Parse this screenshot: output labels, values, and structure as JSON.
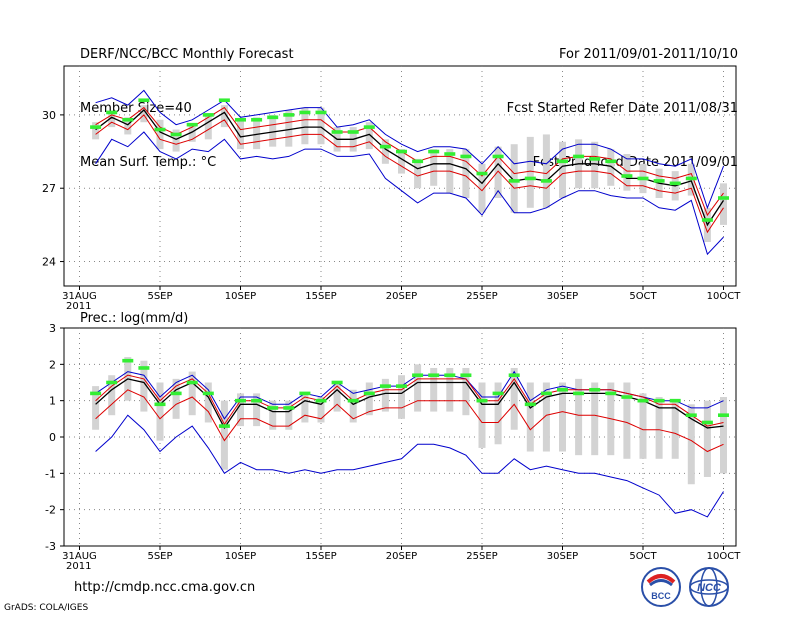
{
  "header": {
    "left": [
      "DERF/NCC/BCC Monthly Forecast",
      "Member Size=40",
      "Mean Surf. Temp.: °C"
    ],
    "right": [
      "For 2011/09/01-2011/10/10",
      "Fcst Started Refer Date 2011/08/31",
      "Fcst Produced Date 2011/09/01"
    ]
  },
  "footer": {
    "url": "http://cmdp.ncc.cma.gov.cn",
    "credit": "GrADS: COLA/IGES",
    "logo1_text": "BCC",
    "logo2_text": "NCC"
  },
  "colors": {
    "mean": "#000000",
    "member_bar": "#d3d3d3",
    "obs": "#33ee33",
    "spread": "#dd0000",
    "envelope": "#0000cc"
  },
  "chart_data": [
    {
      "type": "line",
      "title": "Mean Surf. Temp.: °C",
      "x_tick_labels": [
        "31AUG",
        "5SEP",
        "10SEP",
        "15SEP",
        "20SEP",
        "25SEP",
        "30SEP",
        "5OCT",
        "10OCT"
      ],
      "x_tick_days": [
        0,
        5,
        10,
        15,
        20,
        25,
        30,
        35,
        40
      ],
      "x_sublabel": "2011",
      "ylim": [
        23,
        32
      ],
      "y_ticks": [
        24,
        27,
        30
      ],
      "mean": [
        29.4,
        29.9,
        29.6,
        30.2,
        29.3,
        29.0,
        29.3,
        29.7,
        30.1,
        29.1,
        29.2,
        29.3,
        29.4,
        29.5,
        29.5,
        29.0,
        29.0,
        29.2,
        28.6,
        28.2,
        27.8,
        28.0,
        28.0,
        27.8,
        27.2,
        28.0,
        27.3,
        27.4,
        27.3,
        27.9,
        28.0,
        28.0,
        27.9,
        27.4,
        27.4,
        27.2,
        27.1,
        27.3,
        25.5,
        26.5
      ],
      "upper_red": [
        29.6,
        30.0,
        29.8,
        30.3,
        29.5,
        29.2,
        29.5,
        29.9,
        30.3,
        29.4,
        29.5,
        29.6,
        29.7,
        29.8,
        29.8,
        29.3,
        29.3,
        29.5,
        28.9,
        28.5,
        28.1,
        28.3,
        28.3,
        28.1,
        27.5,
        28.3,
        27.6,
        27.7,
        27.6,
        28.2,
        28.3,
        28.3,
        28.2,
        27.7,
        27.7,
        27.5,
        27.4,
        27.6,
        25.9,
        26.8
      ],
      "lower_red": [
        29.2,
        29.7,
        29.4,
        30.0,
        29.0,
        28.8,
        29.0,
        29.4,
        29.8,
        28.8,
        28.9,
        29.0,
        29.1,
        29.2,
        29.2,
        28.7,
        28.7,
        28.9,
        28.3,
        27.9,
        27.5,
        27.7,
        27.7,
        27.5,
        26.9,
        27.7,
        27.0,
        27.1,
        27.0,
        27.6,
        27.7,
        27.7,
        27.6,
        27.1,
        27.1,
        26.9,
        26.8,
        27.0,
        25.2,
        26.2
      ],
      "upper_blue": [
        30.5,
        30.7,
        30.4,
        31.0,
        30.1,
        29.6,
        29.8,
        30.2,
        30.6,
        29.9,
        30.0,
        30.1,
        30.2,
        30.3,
        30.3,
        29.5,
        29.6,
        29.8,
        29.2,
        28.8,
        28.5,
        28.7,
        28.7,
        28.6,
        28.0,
        28.7,
        28.0,
        28.1,
        28.0,
        28.6,
        28.8,
        28.8,
        28.6,
        28.2,
        28.2,
        28.0,
        27.9,
        28.2,
        26.2,
        27.9
      ],
      "lower_blue": [
        28.0,
        29.0,
        28.7,
        29.3,
        28.5,
        28.2,
        28.6,
        28.5,
        29.0,
        28.2,
        28.3,
        28.2,
        28.3,
        28.6,
        28.6,
        28.3,
        28.3,
        28.4,
        27.4,
        26.9,
        26.4,
        26.8,
        26.8,
        26.6,
        25.9,
        26.9,
        26.0,
        26.0,
        26.2,
        26.6,
        26.9,
        26.9,
        26.7,
        26.6,
        26.6,
        26.2,
        26.1,
        26.5,
        24.3,
        25.0
      ],
      "bar_top": [
        29.7,
        30.1,
        29.9,
        30.4,
        29.8,
        29.4,
        29.6,
        30.0,
        30.4,
        29.8,
        29.9,
        30.0,
        30.2,
        30.3,
        30.3,
        29.5,
        29.5,
        29.7,
        29.0,
        28.6,
        28.2,
        28.6,
        28.6,
        28.6,
        28.0,
        28.7,
        28.8,
        29.1,
        29.2,
        28.9,
        29.0,
        28.9,
        28.6,
        28.4,
        28.0,
        27.8,
        27.7,
        28.0,
        26.2,
        27.2
      ],
      "bar_bottom": [
        29.0,
        29.5,
        29.2,
        29.7,
        28.6,
        28.5,
        28.9,
        29.0,
        29.5,
        28.6,
        28.6,
        28.7,
        28.7,
        28.8,
        28.8,
        28.5,
        28.5,
        28.6,
        28.0,
        27.6,
        27.0,
        27.1,
        26.8,
        26.6,
        26.0,
        26.6,
        26.0,
        26.2,
        26.2,
        26.6,
        27.0,
        27.0,
        27.1,
        26.9,
        26.8,
        26.6,
        26.5,
        26.7,
        24.8,
        25.5
      ],
      "observed": [
        29.5,
        30.1,
        29.8,
        30.6,
        29.4,
        29.2,
        29.6,
        30.0,
        30.6,
        29.8,
        29.8,
        29.9,
        30.0,
        30.1,
        30.1,
        29.3,
        29.3,
        29.5,
        28.7,
        28.5,
        28.1,
        28.5,
        28.4,
        28.3,
        27.6,
        28.3,
        27.3,
        27.4,
        27.3,
        28.1,
        28.3,
        28.2,
        28.1,
        27.5,
        27.4,
        27.3,
        27.2,
        27.4,
        25.7,
        26.6
      ]
    },
    {
      "type": "line",
      "title": "Prec.: log(mm/d)",
      "x_tick_labels": [
        "31AUG",
        "5SEP",
        "10SEP",
        "15SEP",
        "20SEP",
        "25SEP",
        "30SEP",
        "5OCT",
        "10OCT"
      ],
      "x_tick_days": [
        0,
        5,
        10,
        15,
        20,
        25,
        30,
        35,
        40
      ],
      "x_sublabel": "2011",
      "ylim": [
        -3,
        3
      ],
      "y_ticks": [
        -3,
        -2,
        -1,
        0,
        1,
        2,
        3
      ],
      "mean": [
        0.9,
        1.3,
        1.6,
        1.5,
        0.9,
        1.3,
        1.5,
        1.1,
        0.25,
        0.9,
        0.9,
        0.7,
        0.7,
        1.0,
        0.9,
        1.3,
        0.9,
        1.1,
        1.2,
        1.2,
        1.5,
        1.5,
        1.5,
        1.5,
        0.9,
        0.9,
        1.5,
        0.8,
        1.1,
        1.2,
        1.2,
        1.2,
        1.2,
        1.1,
        1.0,
        0.8,
        0.8,
        0.5,
        0.25,
        0.3
      ],
      "upper_red": [
        1.0,
        1.4,
        1.7,
        1.6,
        1.0,
        1.4,
        1.6,
        1.2,
        0.35,
        1.0,
        1.0,
        0.8,
        0.8,
        1.1,
        1.0,
        1.4,
        1.0,
        1.2,
        1.3,
        1.3,
        1.6,
        1.6,
        1.6,
        1.6,
        1.0,
        1.0,
        1.6,
        0.9,
        1.2,
        1.3,
        1.3,
        1.3,
        1.3,
        1.2,
        1.1,
        0.9,
        0.9,
        0.6,
        0.3,
        0.4
      ],
      "lower_red": [
        0.5,
        0.9,
        1.3,
        1.1,
        0.5,
        0.9,
        1.1,
        0.7,
        -0.1,
        0.5,
        0.5,
        0.3,
        0.3,
        0.6,
        0.5,
        0.9,
        0.5,
        0.7,
        0.8,
        0.8,
        1.0,
        1.0,
        1.0,
        1.0,
        0.4,
        0.4,
        0.9,
        0.2,
        0.6,
        0.7,
        0.6,
        0.6,
        0.5,
        0.4,
        0.2,
        0.2,
        0.1,
        -0.1,
        -0.4,
        -0.2
      ],
      "upper_blue": [
        1.2,
        1.5,
        1.8,
        1.7,
        1.1,
        1.5,
        1.7,
        1.3,
        0.5,
        1.1,
        1.1,
        0.9,
        0.9,
        1.2,
        1.1,
        1.5,
        1.2,
        1.3,
        1.4,
        1.4,
        1.7,
        1.7,
        1.7,
        1.6,
        1.1,
        1.1,
        1.8,
        1.0,
        1.3,
        1.4,
        1.3,
        1.3,
        1.3,
        1.2,
        1.1,
        1.0,
        1.0,
        0.8,
        0.8,
        1.0
      ],
      "lower_blue": [
        -0.4,
        0.0,
        0.6,
        0.2,
        -0.4,
        0.0,
        0.3,
        -0.3,
        -1.0,
        -0.7,
        -0.9,
        -0.9,
        -1.0,
        -0.9,
        -1.0,
        -0.9,
        -0.9,
        -0.8,
        -0.7,
        -0.6,
        -0.2,
        -0.2,
        -0.3,
        -0.5,
        -1.0,
        -1.0,
        -0.6,
        -0.9,
        -0.8,
        -0.9,
        -1.0,
        -1.0,
        -1.1,
        -1.2,
        -1.4,
        -1.6,
        -2.1,
        -2.0,
        -2.2,
        -1.5
      ],
      "bar_top": [
        1.4,
        1.7,
        2.2,
        2.1,
        1.5,
        1.6,
        1.8,
        1.5,
        1.0,
        1.2,
        1.2,
        1.0,
        1.0,
        1.2,
        1.1,
        1.5,
        1.3,
        1.5,
        1.6,
        1.7,
        2.0,
        1.9,
        1.9,
        1.9,
        1.5,
        1.5,
        1.9,
        1.5,
        1.5,
        1.5,
        1.6,
        1.5,
        1.5,
        1.5,
        1.2,
        1.1,
        1.0,
        0.9,
        1.0,
        1.1
      ],
      "bar_bottom": [
        0.2,
        0.6,
        1.0,
        0.7,
        -0.1,
        0.5,
        0.6,
        0.4,
        -0.9,
        0.3,
        0.3,
        0.2,
        0.2,
        0.4,
        0.4,
        0.7,
        0.4,
        0.6,
        0.7,
        0.5,
        0.7,
        0.7,
        0.7,
        0.6,
        -0.3,
        -0.2,
        0.2,
        -0.4,
        -0.4,
        -0.4,
        -0.5,
        -0.5,
        -0.5,
        -0.6,
        -0.6,
        -0.6,
        -0.6,
        -1.3,
        -1.1,
        -1.0
      ],
      "observed": [
        1.2,
        1.5,
        2.1,
        1.9,
        0.9,
        1.2,
        1.5,
        1.2,
        0.3,
        1.0,
        1.0,
        0.8,
        0.8,
        1.2,
        1.0,
        1.5,
        1.0,
        1.2,
        1.4,
        1.4,
        1.7,
        1.7,
        1.7,
        1.7,
        1.0,
        1.2,
        1.7,
        0.9,
        1.2,
        1.3,
        1.2,
        1.3,
        1.2,
        1.1,
        1.0,
        1.0,
        1.0,
        0.6,
        0.4,
        0.6
      ]
    }
  ]
}
